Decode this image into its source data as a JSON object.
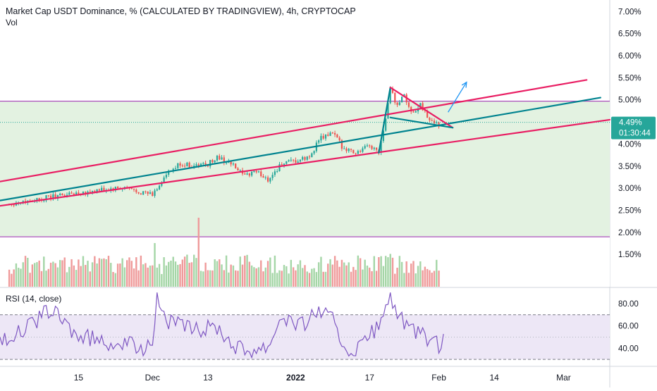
{
  "header": {
    "title": "Market Cap USDT Dominance, % (CALCULATED BY TRADINGVIEW), 4h, CRYPTOCAP",
    "volume_label": "Vol",
    "rsi_label": "RSI (14, close)"
  },
  "price_badge": {
    "value": "4.49%",
    "countdown": "01:30:44"
  },
  "colors": {
    "up": "#26a69a",
    "down": "#ef5350",
    "channel": "#e91e63",
    "trend": "#00838f",
    "zone_fill": "#e3f2e1",
    "zone_border": "#9c27b0",
    "rsi_line": "#7e57c2",
    "rsi_band": "#ede7f6",
    "arrow": "#2196f3",
    "badge": "#26a69a"
  },
  "chart_data": [
    {
      "type": "candlestick",
      "title": "Market Cap USDT Dominance, % (CALCULATED BY TRADINGVIEW), 4h, CRYPTOCAP",
      "timeframe": "4h",
      "x_ticks": [
        "15",
        "Dec",
        "13",
        "2022",
        "17",
        "Feb",
        "14",
        "Mar"
      ],
      "y_ticks": [
        "7.00%",
        "6.50%",
        "6.00%",
        "5.50%",
        "5.00%",
        "4.50%",
        "4.00%",
        "3.50%",
        "3.00%",
        "2.50%",
        "2.00%",
        "1.50%"
      ],
      "y_ticks_values": [
        7.0,
        6.5,
        6.0,
        5.5,
        5.0,
        4.5,
        4.0,
        3.5,
        3.0,
        2.5,
        2.0,
        1.5
      ],
      "ylim": [
        1.2,
        7.1
      ],
      "xlim": [
        -17,
        115
      ],
      "x_ticks_days": [
        0,
        16,
        28,
        47,
        63,
        78,
        90,
        105
      ],
      "last_price": 4.49,
      "grid": false,
      "key_points": [
        {
          "day": -15,
          "close": 2.65
        },
        {
          "day": -9,
          "close": 2.75
        },
        {
          "day": 0,
          "close": 2.9
        },
        {
          "day": 10,
          "close": 3.0
        },
        {
          "day": 16,
          "close": 2.85
        },
        {
          "day": 19,
          "close": 3.3
        },
        {
          "day": 22,
          "close": 3.55
        },
        {
          "day": 25,
          "close": 3.5
        },
        {
          "day": 28,
          "close": 3.55
        },
        {
          "day": 30,
          "close": 3.7
        },
        {
          "day": 33,
          "close": 3.55
        },
        {
          "day": 36,
          "close": 3.25
        },
        {
          "day": 38,
          "close": 3.4
        },
        {
          "day": 41,
          "close": 3.2
        },
        {
          "day": 44,
          "close": 3.55
        },
        {
          "day": 47,
          "close": 3.6
        },
        {
          "day": 50,
          "close": 3.7
        },
        {
          "day": 52,
          "close": 4.1
        },
        {
          "day": 55,
          "close": 4.25
        },
        {
          "day": 57,
          "close": 3.95
        },
        {
          "day": 60,
          "close": 3.8
        },
        {
          "day": 63,
          "close": 3.95
        },
        {
          "day": 65,
          "close": 3.85
        },
        {
          "day": 66.5,
          "close": 4.6
        },
        {
          "day": 67.5,
          "close": 5.25
        },
        {
          "day": 69,
          "close": 4.85
        },
        {
          "day": 70.5,
          "close": 5.15
        },
        {
          "day": 72,
          "close": 4.7
        },
        {
          "day": 74,
          "close": 4.9
        },
        {
          "day": 76,
          "close": 4.55
        },
        {
          "day": 78,
          "close": 4.45
        }
      ],
      "drawings": {
        "channel_upper": [
          [
            -17,
            3.15
          ],
          [
            110,
            5.45
          ]
        ],
        "channel_lower": [
          [
            -17,
            2.6
          ],
          [
            115,
            4.55
          ]
        ],
        "trend_line": [
          [
            -17,
            2.72
          ],
          [
            113,
            5.05
          ]
        ],
        "zone": [
          1.9,
          4.97
        ],
        "flag_upper": [
          [
            67.5,
            5.28
          ],
          [
            81,
            4.37
          ]
        ],
        "flag_lower": [
          [
            67.5,
            4.6
          ],
          [
            81,
            4.37
          ]
        ],
        "flag_pole": [
          [
            65,
            3.8
          ],
          [
            67.5,
            5.28
          ]
        ],
        "breakout_arrow": [
          [
            80,
            4.72
          ],
          [
            84,
            5.4
          ]
        ]
      }
    },
    {
      "type": "bar",
      "title": "Vol",
      "series": [
        {
          "values_relative": "random"
        }
      ]
    },
    {
      "type": "line",
      "title": "RSI (14, close)",
      "y_ticks": [
        "80.00",
        "60.00",
        "40.00"
      ],
      "y_ticks_values": [
        80,
        60,
        40
      ],
      "ylim": [
        25,
        92
      ],
      "bands": [
        30,
        70
      ],
      "middle": 50,
      "key_points": [
        {
          "day": -17,
          "value": 48
        },
        {
          "day": -12,
          "value": 55
        },
        {
          "day": -6,
          "value": 75
        },
        {
          "day": 0,
          "value": 50
        },
        {
          "day": 8,
          "value": 45
        },
        {
          "day": 14,
          "value": 40
        },
        {
          "day": 16,
          "value": 50
        },
        {
          "day": 17,
          "value": 85
        },
        {
          "day": 19,
          "value": 65
        },
        {
          "day": 25,
          "value": 55
        },
        {
          "day": 30,
          "value": 60
        },
        {
          "day": 33,
          "value": 45
        },
        {
          "day": 36,
          "value": 38
        },
        {
          "day": 41,
          "value": 42
        },
        {
          "day": 44,
          "value": 70
        },
        {
          "day": 48,
          "value": 60
        },
        {
          "day": 52,
          "value": 75
        },
        {
          "day": 55,
          "value": 65
        },
        {
          "day": 57,
          "value": 45
        },
        {
          "day": 60,
          "value": 35
        },
        {
          "day": 62,
          "value": 48
        },
        {
          "day": 64,
          "value": 55
        },
        {
          "day": 66,
          "value": 68
        },
        {
          "day": 67.5,
          "value": 88
        },
        {
          "day": 69,
          "value": 70
        },
        {
          "day": 72,
          "value": 55
        },
        {
          "day": 76,
          "value": 48
        },
        {
          "day": 78,
          "value": 42
        },
        {
          "day": 79,
          "value": 45
        }
      ]
    }
  ]
}
